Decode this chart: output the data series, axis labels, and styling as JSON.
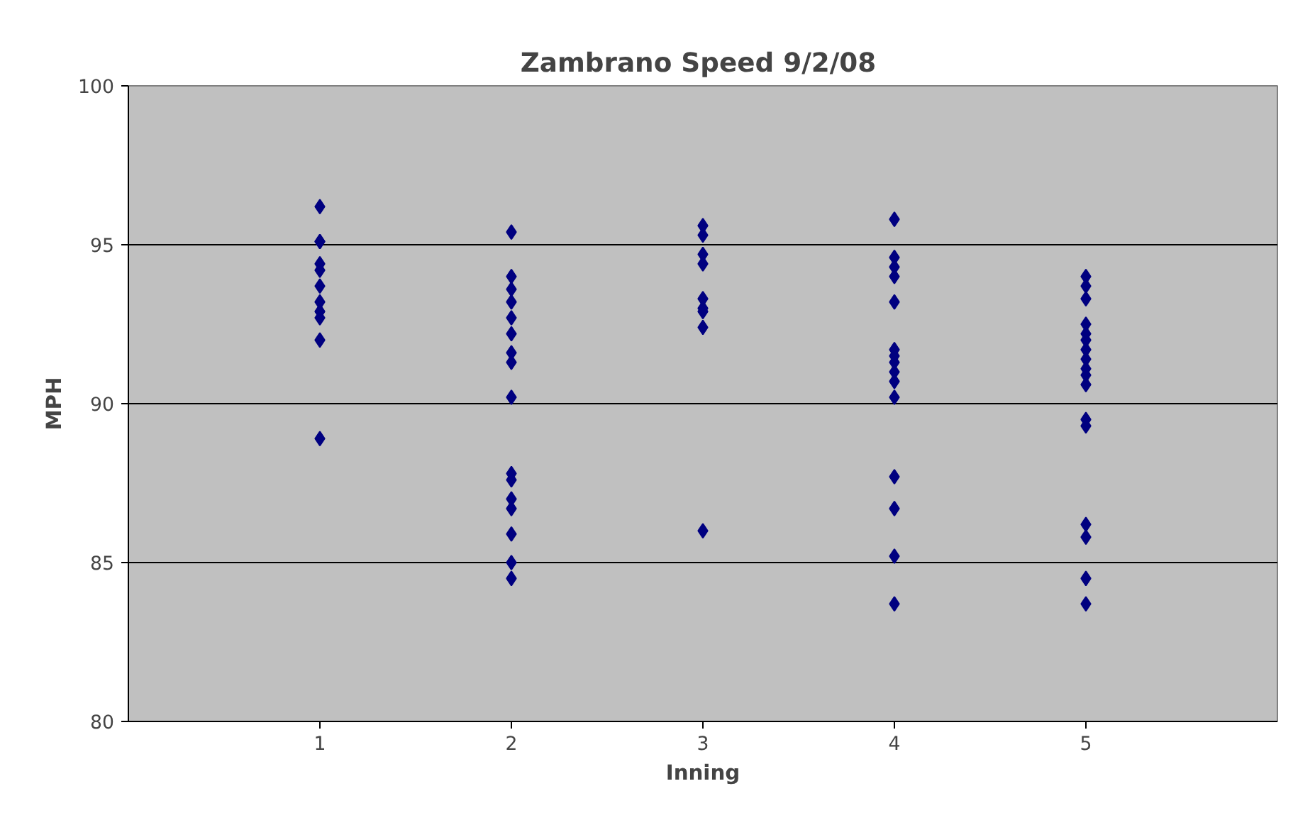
{
  "chart_data": {
    "type": "scatter",
    "title": "Zambrano Speed  9/2/08",
    "xlabel": "Inning",
    "ylabel": "MPH",
    "xlim": [
      0,
      6
    ],
    "xticks": [
      1,
      2,
      3,
      4,
      5
    ],
    "ylim": [
      80,
      100
    ],
    "yticks": [
      80,
      85,
      90,
      95,
      100
    ],
    "grid": "y",
    "marker": "diamond",
    "series": [
      {
        "color": "#000080",
        "x": [
          1,
          1,
          1,
          1,
          1,
          1,
          1,
          1,
          1,
          1,
          1,
          2,
          2,
          2,
          2,
          2,
          2,
          2,
          2,
          2,
          2,
          2,
          2,
          2,
          2,
          2,
          2,
          3,
          3,
          3,
          3,
          3,
          3,
          3,
          3,
          3,
          4,
          4,
          4,
          4,
          4,
          4,
          4,
          4,
          4,
          4,
          4,
          4,
          4,
          4,
          4,
          5,
          5,
          5,
          5,
          5,
          5,
          5,
          5,
          5,
          5,
          5,
          5,
          5,
          5,
          5,
          5,
          5
        ],
        "values": [
          96.2,
          95.1,
          95.1,
          94.4,
          94.2,
          93.7,
          93.2,
          92.9,
          92.7,
          92.0,
          88.9,
          95.4,
          94.0,
          93.6,
          93.2,
          92.7,
          92.2,
          91.6,
          91.3,
          90.2,
          87.8,
          87.6,
          87.0,
          86.7,
          85.9,
          85.0,
          84.5,
          95.6,
          95.3,
          94.7,
          94.4,
          93.3,
          93.0,
          92.9,
          92.4,
          86.0,
          95.8,
          94.6,
          94.3,
          94.0,
          93.2,
          91.7,
          91.5,
          91.3,
          91.0,
          90.7,
          90.2,
          87.7,
          86.7,
          85.2,
          83.7,
          94.0,
          93.7,
          93.3,
          92.5,
          92.2,
          92.0,
          91.7,
          91.4,
          91.1,
          90.9,
          90.6,
          89.5,
          89.3,
          86.2,
          85.8,
          84.5,
          83.7
        ]
      }
    ]
  }
}
